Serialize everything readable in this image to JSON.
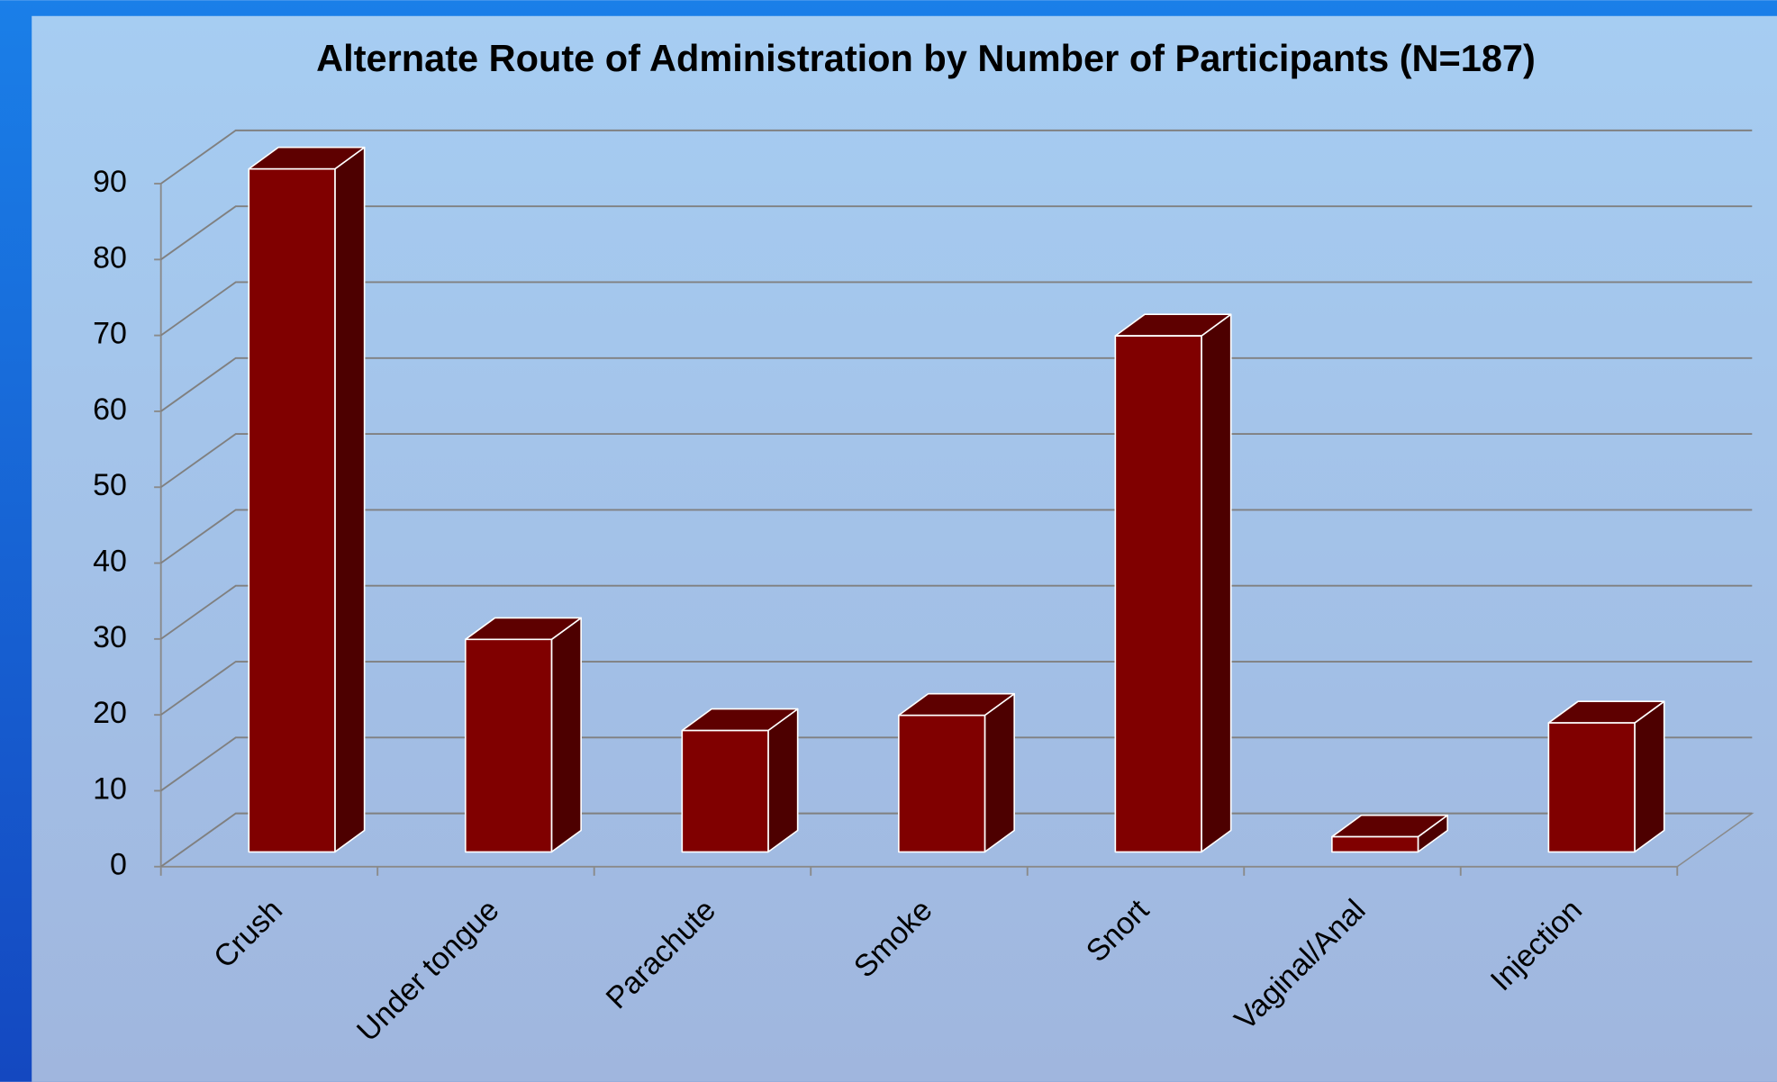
{
  "chart_data": {
    "type": "bar",
    "title": "Alternate Route of Administration by Number of Participants (N=187)",
    "categories": [
      "Crush",
      "Under tongue",
      "Parachute",
      "Smoke",
      "Snort",
      "Vaginal/Anal",
      "Injection"
    ],
    "values": [
      90,
      28,
      16,
      18,
      68,
      2,
      17
    ],
    "color": "#800000",
    "ylim": [
      0,
      90
    ],
    "yticks": [
      0,
      10,
      20,
      30,
      40,
      50,
      60,
      70,
      80,
      90
    ],
    "grid": true
  }
}
